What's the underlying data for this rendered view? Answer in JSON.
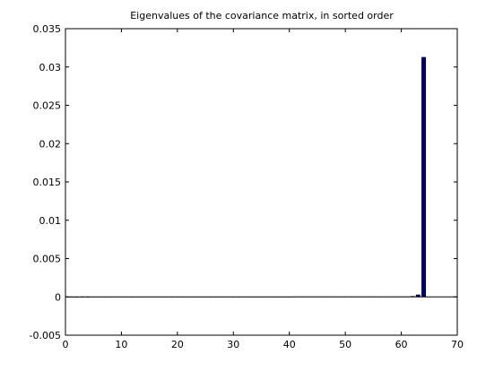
{
  "chart_data": {
    "type": "bar",
    "title": "Eigenvalues of the covariance matrix, in sorted order",
    "xlabel": "",
    "ylabel": "",
    "xlim": [
      0,
      70
    ],
    "ylim": [
      -0.005,
      0.035
    ],
    "x_ticks": [
      "0",
      "10",
      "20",
      "30",
      "40",
      "50",
      "60",
      "70"
    ],
    "y_ticks": [
      "-0.005",
      "0",
      "0.005",
      "0.01",
      "0.015",
      "0.02",
      "0.025",
      "0.03",
      "0.035"
    ],
    "grid": false,
    "bar_color": "#000066",
    "x": [
      1,
      2,
      3,
      4,
      5,
      6,
      7,
      8,
      9,
      10,
      11,
      12,
      13,
      14,
      15,
      16,
      17,
      18,
      19,
      20,
      21,
      22,
      23,
      24,
      25,
      26,
      27,
      28,
      29,
      30,
      31,
      32,
      33,
      34,
      35,
      36,
      37,
      38,
      39,
      40,
      41,
      42,
      43,
      44,
      45,
      46,
      47,
      48,
      49,
      50,
      51,
      52,
      53,
      54,
      55,
      56,
      57,
      58,
      59,
      60,
      61,
      62,
      63,
      64
    ],
    "values": [
      0,
      0,
      0,
      0,
      2e-05,
      2e-05,
      2e-05,
      2e-05,
      2e-05,
      2e-05,
      2e-05,
      2e-05,
      2e-05,
      2e-05,
      2e-05,
      2e-05,
      2e-05,
      2e-05,
      2e-05,
      2e-05,
      2e-05,
      2e-05,
      2e-05,
      2e-05,
      2e-05,
      2e-05,
      2e-05,
      2e-05,
      2e-05,
      2e-05,
      2e-05,
      2e-05,
      2e-05,
      2e-05,
      2e-05,
      2e-05,
      2e-05,
      2e-05,
      2e-05,
      2e-05,
      5e-05,
      5e-05,
      5e-05,
      5e-05,
      5e-05,
      5e-05,
      5e-05,
      5e-05,
      5e-05,
      5e-05,
      5e-05,
      5e-05,
      5e-05,
      5e-05,
      5e-05,
      5e-05,
      5e-05,
      5e-05,
      5e-05,
      5e-05,
      5e-05,
      0.0001,
      0.0003,
      0.0313
    ]
  }
}
